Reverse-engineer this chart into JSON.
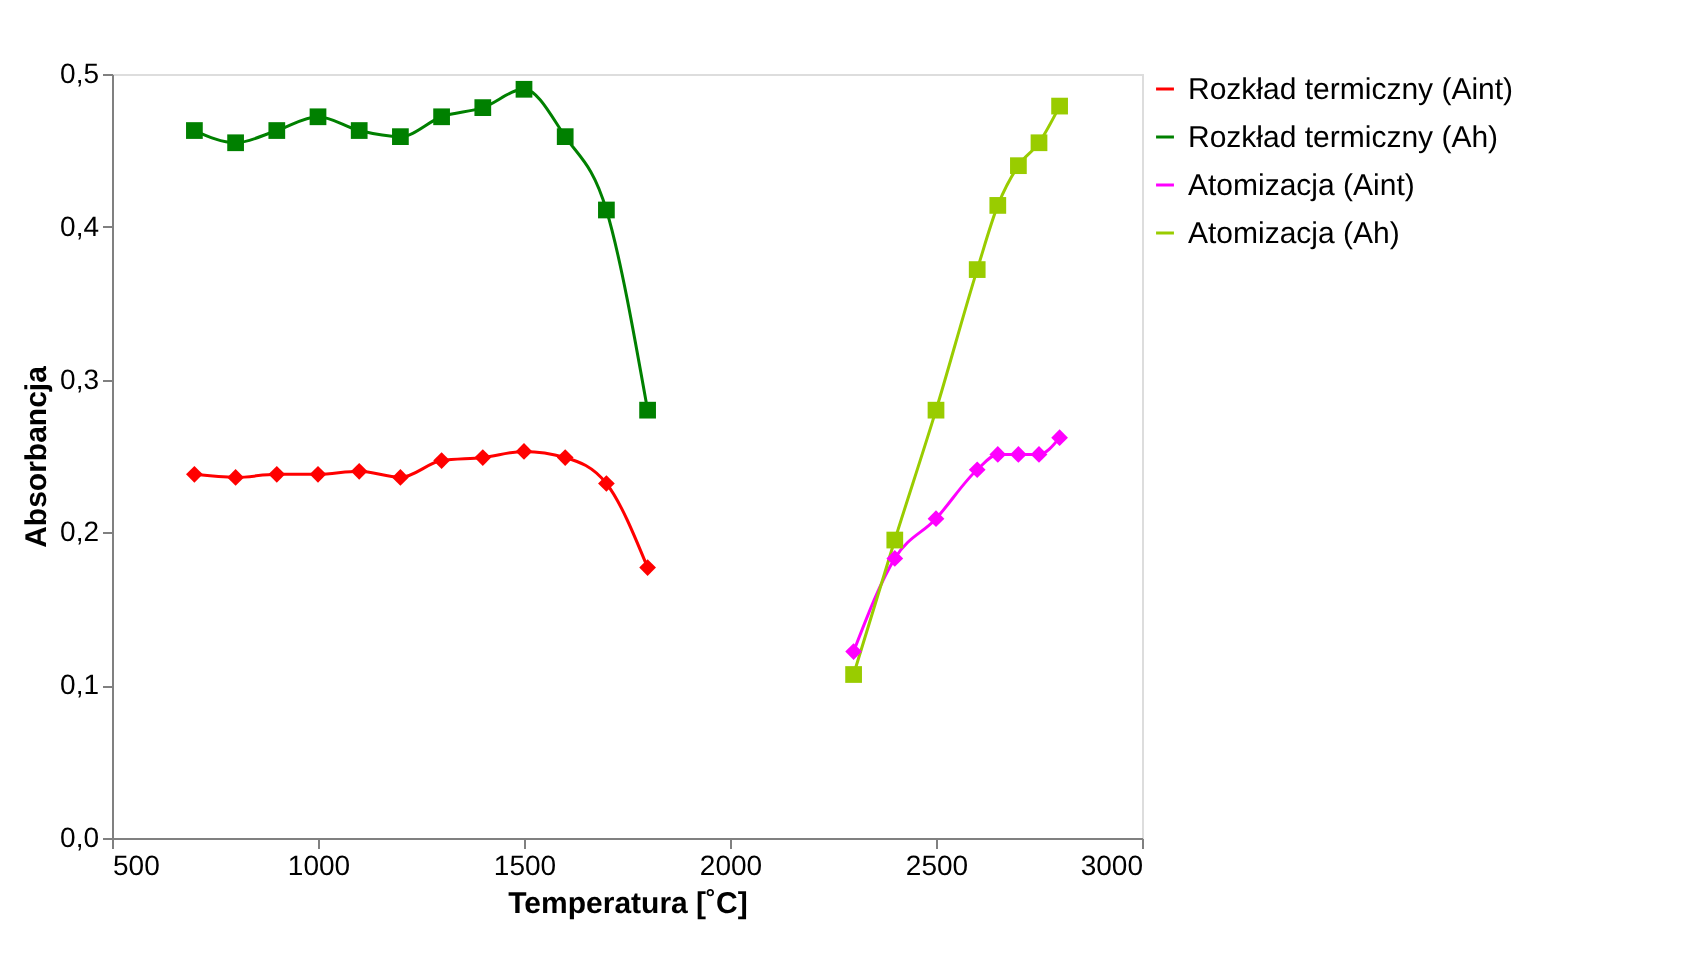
{
  "chart_data": {
    "type": "line",
    "xlabel": "Temperatura [˚C]",
    "ylabel": "Absorbancja",
    "xlim": [
      500,
      3000
    ],
    "xticks": [
      500,
      1000,
      1500,
      2000,
      2500,
      3000
    ],
    "ylim": [
      0,
      0.5
    ],
    "yticks": [
      {
        "value": 0,
        "label": "0,0"
      },
      {
        "value": 0.1,
        "label": "0,1"
      },
      {
        "value": 0.2,
        "label": "0,2"
      },
      {
        "value": 0.3,
        "label": "0,3"
      },
      {
        "value": 0.4,
        "label": "0,4"
      },
      {
        "value": 0.5,
        "label": "0,5"
      }
    ],
    "grid": false,
    "legend": "right",
    "line_style": "solid",
    "series": [
      {
        "name": "Rozkład  termiczny (Aint)",
        "color": "#ff0000",
        "marker": "diamond",
        "x": [
          700,
          800,
          900,
          1000,
          1100,
          1200,
          1300,
          1400,
          1500,
          1600,
          1700,
          1800
        ],
        "values": [
          0.238,
          0.236,
          0.238,
          0.238,
          0.24,
          0.236,
          0.247,
          0.249,
          0.253,
          0.249,
          0.232,
          0.177
        ]
      },
      {
        "name": "Rozkład termiczny (Ah)",
        "color": "#008000",
        "marker": "square",
        "x": [
          700,
          800,
          900,
          1000,
          1100,
          1200,
          1300,
          1400,
          1500,
          1600,
          1700,
          1800
        ],
        "values": [
          0.463,
          0.455,
          0.463,
          0.472,
          0.463,
          0.459,
          0.472,
          0.478,
          0.49,
          0.459,
          0.411,
          0.28
        ]
      },
      {
        "name": "Atomizacja (Aint)",
        "color": "#ff00ff",
        "marker": "diamond",
        "x": [
          2300,
          2400,
          2500,
          2600,
          2650,
          2700,
          2750,
          2800
        ],
        "values": [
          0.122,
          0.183,
          0.209,
          0.241,
          0.251,
          0.251,
          0.251,
          0.262
        ]
      },
      {
        "name": "Atomizacja (Ah)",
        "color": "#99cc00",
        "marker": "square",
        "x": [
          2300,
          2400,
          2500,
          2600,
          2650,
          2700,
          2750,
          2800
        ],
        "values": [
          0.107,
          0.195,
          0.28,
          0.372,
          0.414,
          0.44,
          0.455,
          0.479
        ]
      }
    ]
  }
}
